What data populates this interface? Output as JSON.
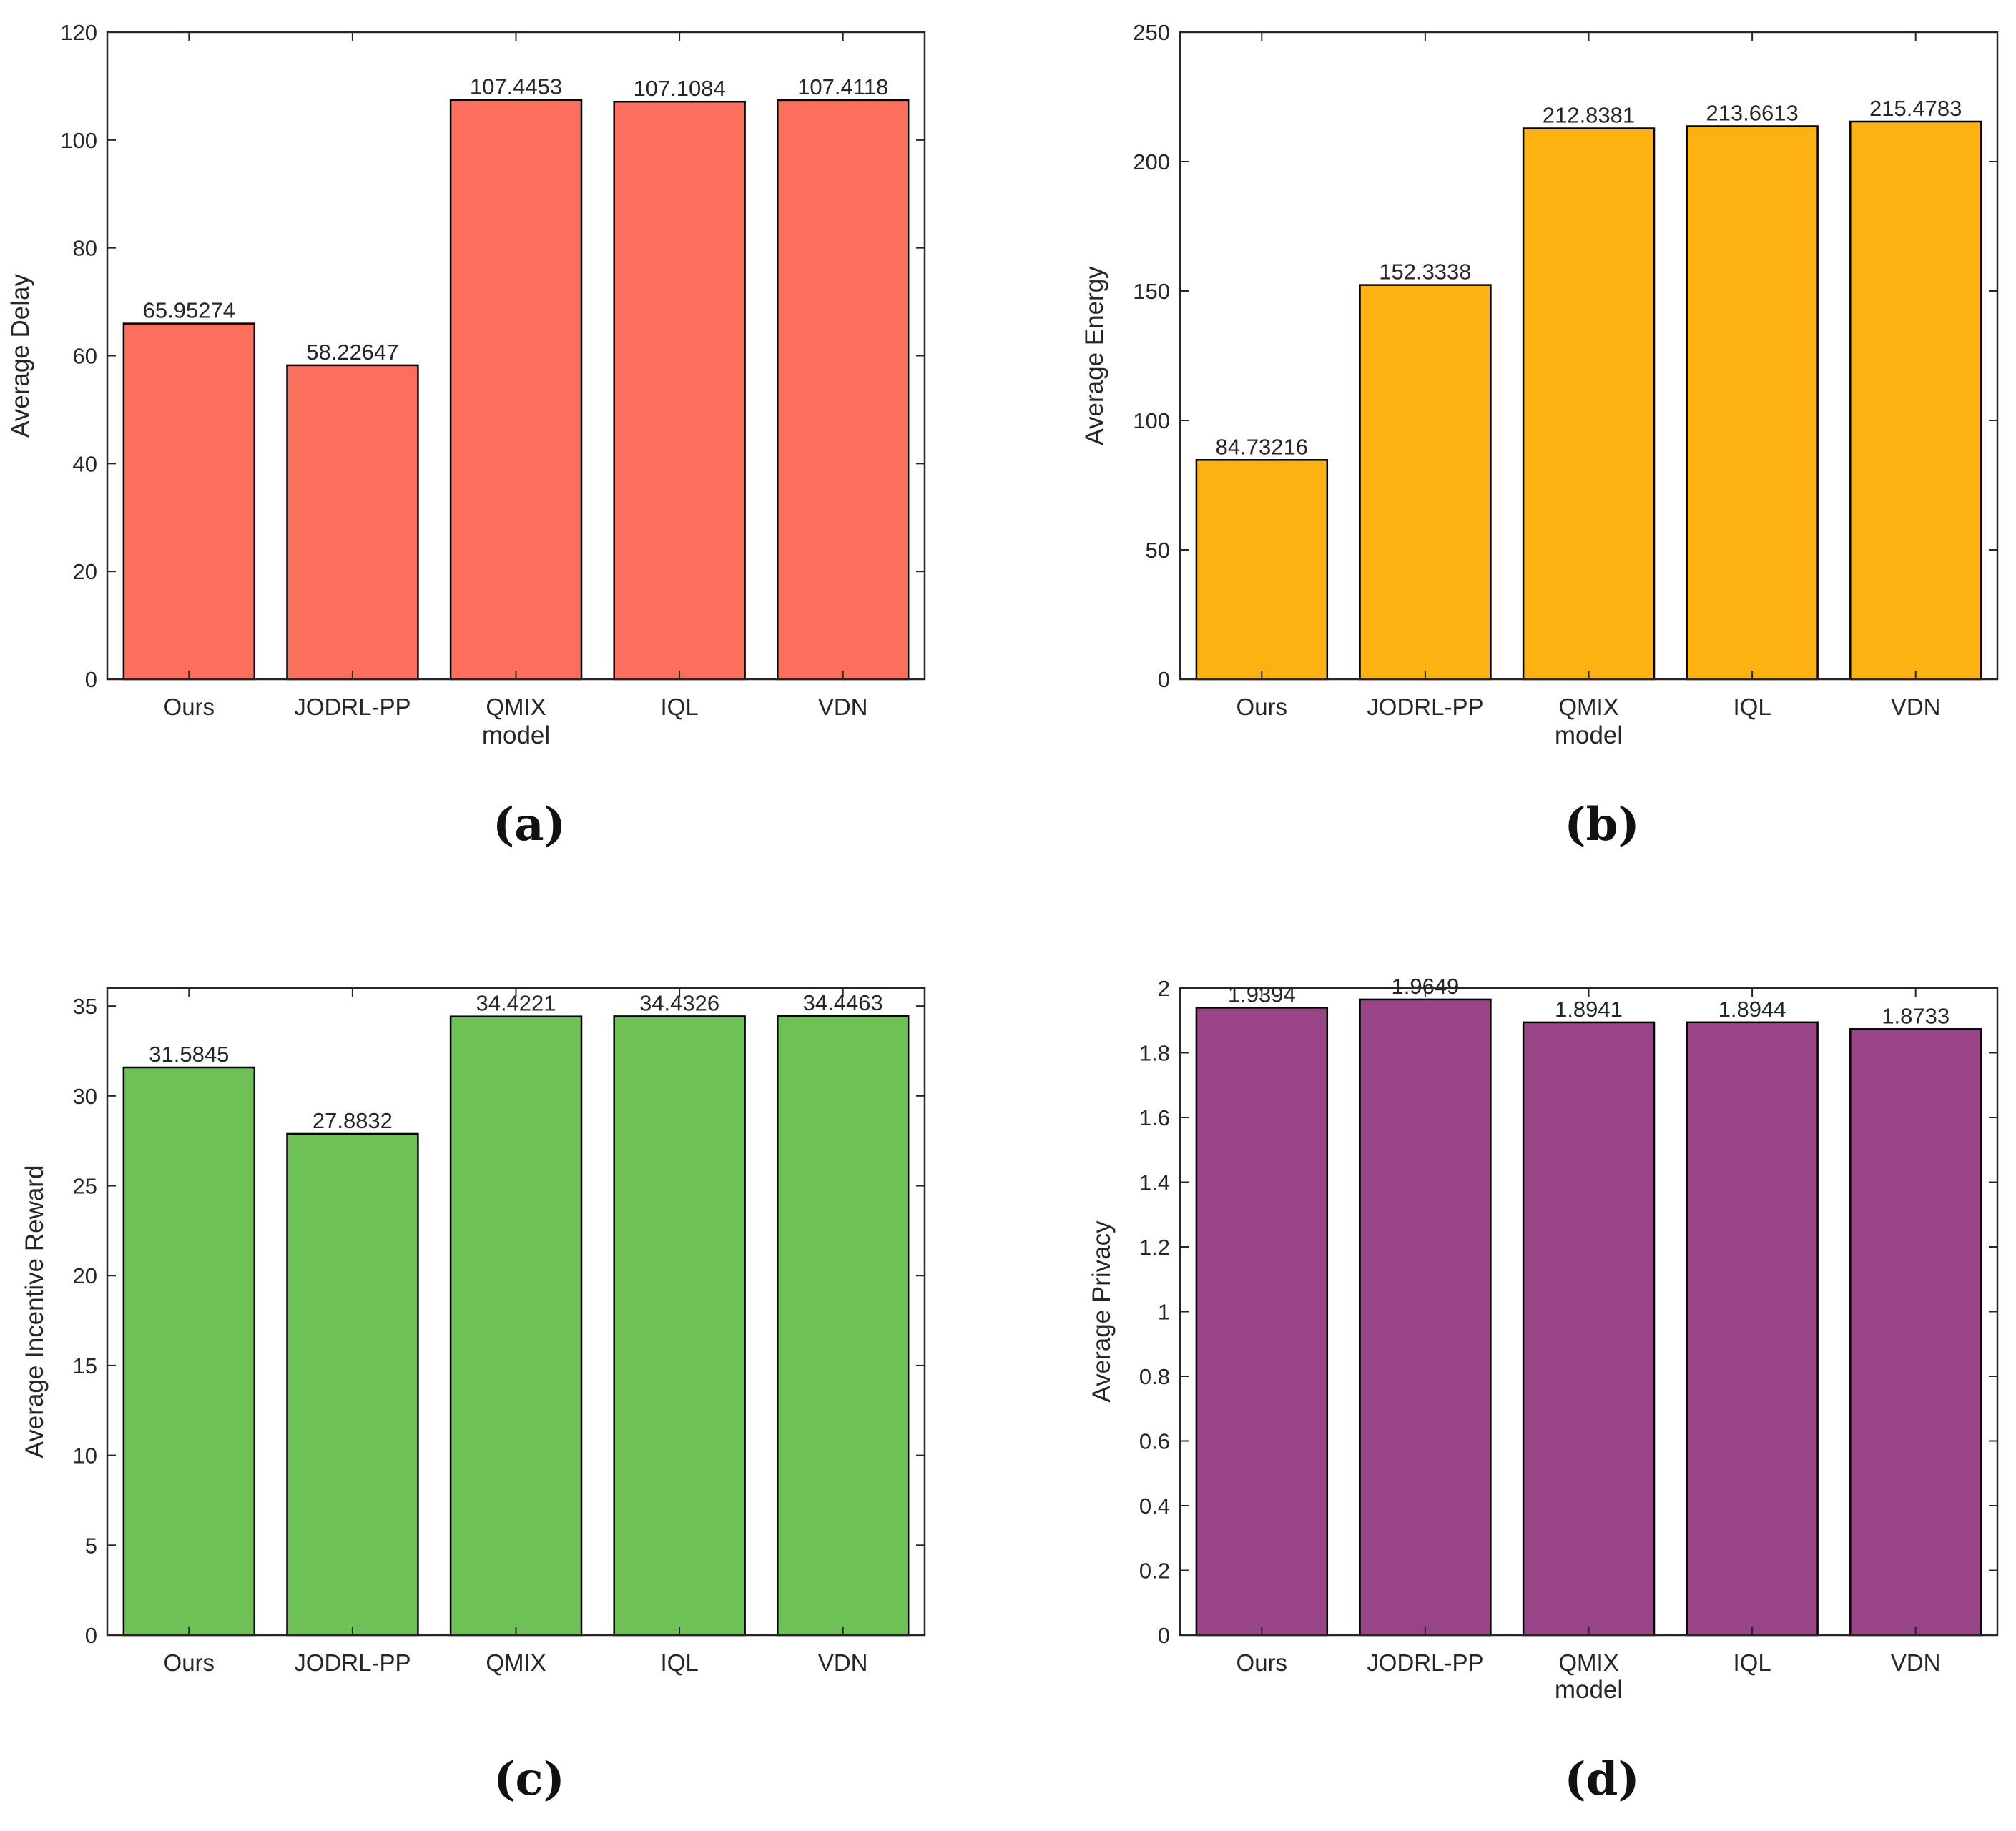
{
  "chart_data": [
    {
      "type": "bar",
      "categories": [
        "Ours",
        "JODRL-PP",
        "QMIX",
        "IQL",
        "VDN"
      ],
      "values": [
        65.95274,
        58.22647,
        107.4453,
        107.1084,
        107.4118
      ],
      "value_labels": [
        "65.95274",
        "58.22647",
        "107.4453",
        "107.1084",
        "107.4118"
      ],
      "xlabel": "model",
      "ylabel": "Average Delay",
      "ylim": [
        0,
        120
      ],
      "yticks": [
        0,
        20,
        40,
        60,
        80,
        100,
        120
      ],
      "ytick_labels": [
        "0",
        "20",
        "40",
        "60",
        "80",
        "100",
        "120"
      ],
      "color": "#fb6f5c",
      "caption": "(a)",
      "grid": false
    },
    {
      "type": "bar",
      "categories": [
        "Ours",
        "JODRL-PP",
        "QMIX",
        "IQL",
        "VDN"
      ],
      "values": [
        84.73216,
        152.3338,
        212.8381,
        213.6613,
        215.4783
      ],
      "value_labels": [
        "84.73216",
        "152.3338",
        "212.8381",
        "213.6613",
        "215.4783"
      ],
      "xlabel": "model",
      "ylabel": "Average Energy",
      "ylim": [
        0,
        250
      ],
      "yticks": [
        0,
        50,
        100,
        150,
        200,
        250
      ],
      "ytick_labels": [
        "0",
        "50",
        "100",
        "150",
        "200",
        "250"
      ],
      "color": "#fdb211",
      "caption": "(b)",
      "grid": false
    },
    {
      "type": "bar",
      "categories": [
        "Ours",
        "JODRL-PP",
        "QMIX",
        "IQL",
        "VDN"
      ],
      "values": [
        31.5845,
        27.8832,
        34.4221,
        34.4326,
        34.4463
      ],
      "value_labels": [
        "31.5845",
        "27.8832",
        "34.4221",
        "34.4326",
        "34.4463"
      ],
      "xlabel": "",
      "ylabel": "Average Incentive Reward",
      "ylim": [
        0,
        36
      ],
      "yticks": [
        0,
        5,
        10,
        15,
        20,
        25,
        30,
        35
      ],
      "ytick_labels": [
        "0",
        "5",
        "10",
        "15",
        "20",
        "25",
        "30",
        "35"
      ],
      "color": "#6dc155",
      "caption": "(c)",
      "grid": false
    },
    {
      "type": "bar",
      "categories": [
        "Ours",
        "JODRL-PP",
        "QMIX",
        "IQL",
        "VDN"
      ],
      "values": [
        1.9394,
        1.9649,
        1.8941,
        1.8944,
        1.8733
      ],
      "value_labels": [
        "1.9394",
        "1.9649",
        "1.8941",
        "1.8944",
        "1.8733"
      ],
      "xlabel": "model",
      "ylabel": "Average Privacy",
      "ylim": [
        0,
        2
      ],
      "yticks": [
        0,
        0.2,
        0.4,
        0.6,
        0.8,
        1,
        1.2,
        1.4,
        1.6,
        1.8,
        2
      ],
      "ytick_labels": [
        "0",
        "0.2",
        "0.4",
        "0.6",
        "0.8",
        "1",
        "1.2",
        "1.4",
        "1.6",
        "1.8",
        "2"
      ],
      "color": "#984486",
      "caption": "(d)",
      "grid": false
    }
  ]
}
